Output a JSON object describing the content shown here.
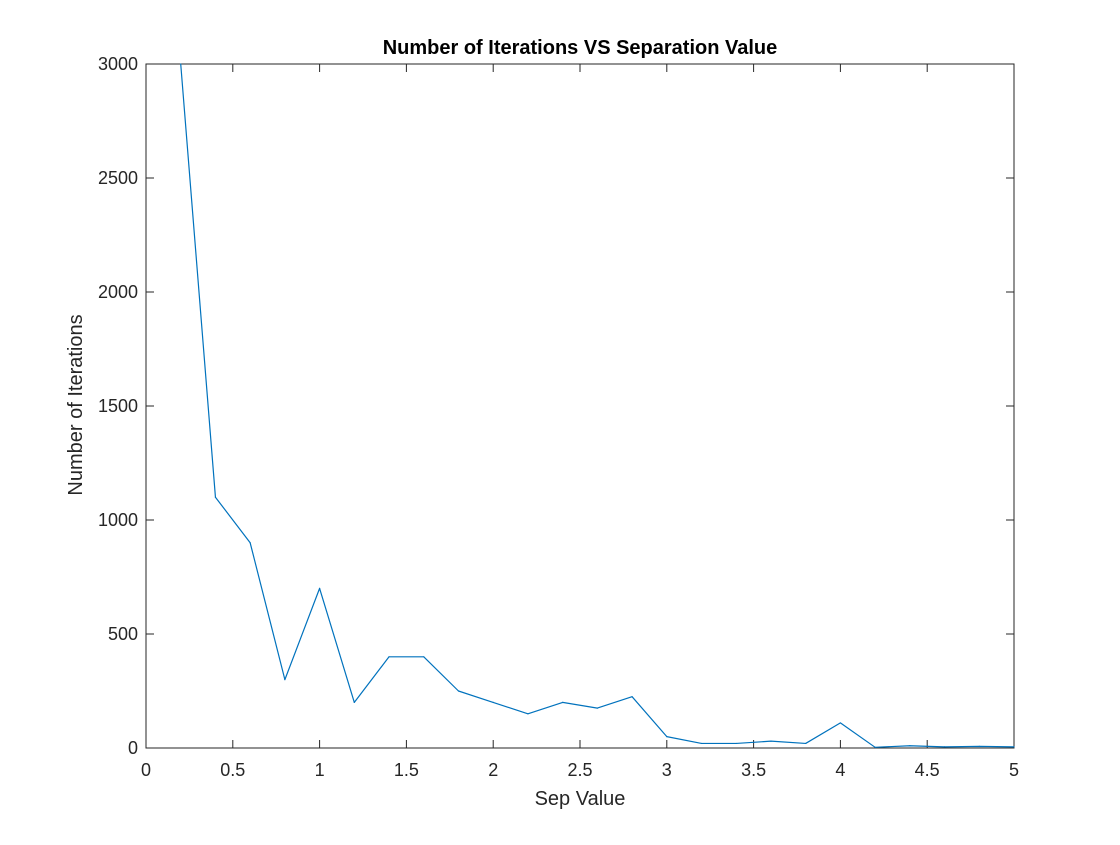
{
  "chart_data": {
    "type": "line",
    "title": "Number of Iterations VS Separation Value",
    "xlabel": "Sep Value",
    "ylabel": "Number of Iterations",
    "xlim": [
      0,
      5
    ],
    "ylim": [
      0,
      3000
    ],
    "xticks": [
      0,
      0.5,
      1,
      1.5,
      2,
      2.5,
      3,
      3.5,
      4,
      4.5,
      5
    ],
    "xtick_labels": [
      "0",
      "0.5",
      "1",
      "1.5",
      "2",
      "2.5",
      "3",
      "3.5",
      "4",
      "4.5",
      "5"
    ],
    "yticks": [
      0,
      500,
      1000,
      1500,
      2000,
      2500,
      3000
    ],
    "ytick_labels": [
      "0",
      "500",
      "1000",
      "1500",
      "2000",
      "2500",
      "3000"
    ],
    "grid": false,
    "legend": "none",
    "series": [
      {
        "color": "#0072bd",
        "x": [
          0.2,
          0.4,
          0.6,
          0.8,
          1.0,
          1.2,
          1.4,
          1.6,
          1.8,
          2.0,
          2.2,
          2.4,
          2.6,
          2.8,
          3.0,
          3.2,
          3.4,
          3.6,
          3.8,
          4.0,
          4.2,
          4.4,
          4.6,
          4.8,
          5.0
        ],
        "y": [
          3000,
          1100,
          900,
          300,
          700,
          200,
          400,
          400,
          250,
          200,
          150,
          200,
          175,
          225,
          50,
          20,
          20,
          30,
          20,
          110,
          3,
          10,
          5,
          7,
          5
        ]
      }
    ]
  }
}
